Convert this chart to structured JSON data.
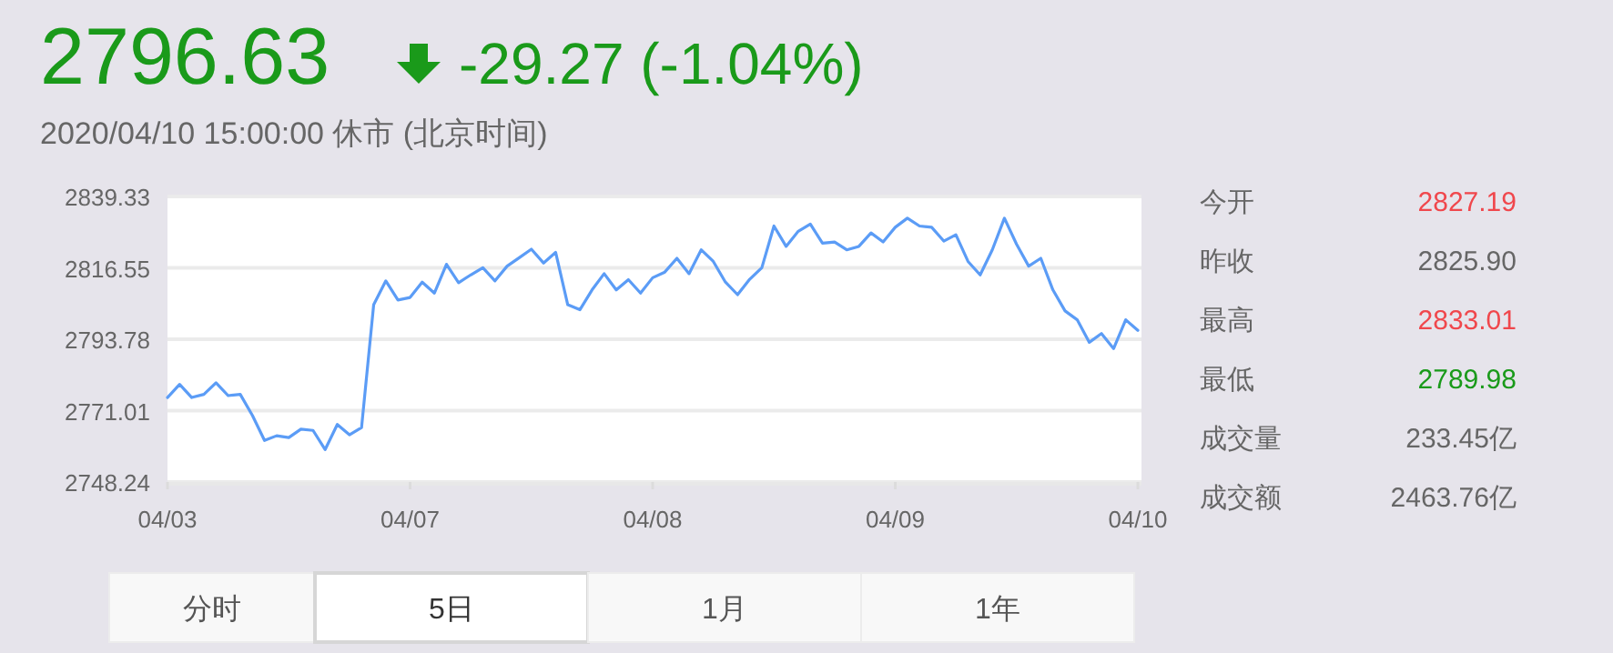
{
  "chart_data": [
    {
      "type": "line",
      "title": "2796.63",
      "subtitle": "-29.27 (-1.04%)",
      "annotations": [
        "2020/04/10 15:00:00  休市 (北京时间)",
        "分时",
        "5日",
        "1月",
        "1年"
      ],
      "categories": [
        "04/03",
        null,
        null,
        null,
        null,
        null,
        null,
        null,
        null,
        null,
        null,
        null,
        null,
        null,
        null,
        null,
        null,
        null,
        null,
        null,
        "04/07",
        null,
        null,
        null,
        null,
        null,
        null,
        null,
        null,
        null,
        null,
        null,
        null,
        null,
        null,
        null,
        null,
        null,
        null,
        null,
        "04/08",
        null,
        null,
        null,
        null,
        null,
        null,
        null,
        null,
        null,
        null,
        null,
        null,
        null,
        null,
        null,
        null,
        null,
        null,
        null,
        "04/09",
        null,
        null,
        null,
        null,
        null,
        null,
        null,
        null,
        null,
        null,
        null,
        null,
        null,
        null,
        null,
        null,
        null,
        null,
        null,
        "04/10"
      ],
      "ylim": [
        2748.24,
        2839.33
      ],
      "yticks": [
        {
          "value": 2748.24,
          "label": "2748.24"
        },
        {
          "value": 2771.01,
          "label": "2771.01"
        },
        {
          "value": 2793.78,
          "label": "2793.78"
        },
        {
          "value": 2816.55,
          "label": "2816.55"
        },
        {
          "value": 2839.33,
          "label": "2839.33"
        }
      ],
      "grid": "y",
      "marker": "none",
      "line_style": "solid",
      "series": [
        {
          "color": "#5b9cf6",
          "values": [
            2775.2,
            2779.4,
            2775.2,
            2776.2,
            2779.9,
            2775.8,
            2776.2,
            2769.5,
            2761.5,
            2763.0,
            2762.4,
            2765.1,
            2764.7,
            2758.6,
            2766.6,
            2763.3,
            2765.6,
            2804.8,
            2812.4,
            2806.3,
            2807.1,
            2812.0,
            2808.5,
            2817.7,
            2811.8,
            2814.3,
            2816.6,
            2812.4,
            2817.1,
            2819.8,
            2822.5,
            2818.1,
            2821.5,
            2804.8,
            2803.2,
            2809.5,
            2814.7,
            2809.5,
            2812.8,
            2808.5,
            2813.4,
            2815.2,
            2819.6,
            2814.7,
            2822.3,
            2818.6,
            2812.0,
            2808.0,
            2812.9,
            2816.6,
            2829.9,
            2823.4,
            2828.2,
            2830.5,
            2824.4,
            2824.8,
            2822.3,
            2823.4,
            2827.7,
            2824.8,
            2829.5,
            2832.4,
            2829.9,
            2829.5,
            2825.1,
            2827.1,
            2818.6,
            2814.3,
            2822.3,
            2832.4,
            2824.1,
            2817.1,
            2819.6,
            2809.5,
            2802.8,
            2800.0,
            2792.8,
            2795.6,
            2790.8,
            2800.0,
            2796.6
          ]
        }
      ]
    },
    {
      "type": "other",
      "categories": [
        "今开",
        "昨收",
        "最高",
        "最低",
        "成交量",
        "成交额"
      ],
      "value_labels": [
        "2827.19",
        "2825.90",
        "2833.01",
        "2789.98",
        "233.45亿",
        "2463.76亿"
      ],
      "colors": [
        "#f0474c",
        "#666666",
        "#f0474c",
        "#1a9a1a",
        "#666666",
        "#666666"
      ]
    }
  ]
}
